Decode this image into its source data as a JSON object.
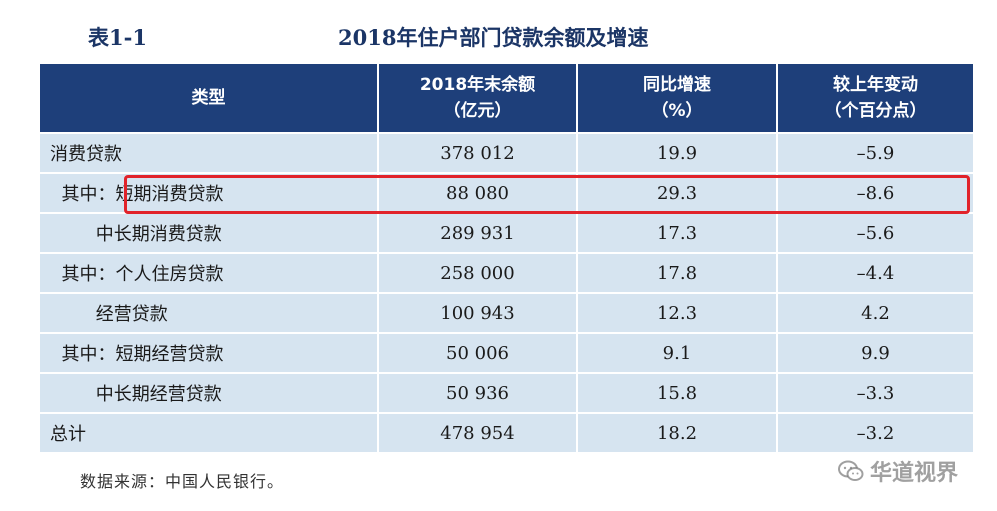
{
  "caption": {
    "label": "表1-1",
    "title": "2018年住户部门贷款余额及增速"
  },
  "table": {
    "headers": [
      {
        "line1": "类型",
        "line2": ""
      },
      {
        "line1": "2018年末余额",
        "line2": "（亿元）"
      },
      {
        "line1": "同比增速",
        "line2": "（%）"
      },
      {
        "line1": "较上年变动",
        "line2": "（个百分点）"
      }
    ],
    "rows": [
      {
        "type": "消费贷款",
        "balance": "378 012",
        "growth": "19.9",
        "change": "–5.9"
      },
      {
        "type": "  其中：短期消费贷款",
        "balance": "88 080",
        "growth": "29.3",
        "change": "–8.6"
      },
      {
        "type": "        中长期消费贷款",
        "balance": "289 931",
        "growth": "17.3",
        "change": "–5.6"
      },
      {
        "type": "  其中：个人住房贷款",
        "balance": "258 000",
        "growth": "17.8",
        "change": "–4.4"
      },
      {
        "type": "        经营贷款",
        "balance": "100 943",
        "growth": "12.3",
        "change": "4.2"
      },
      {
        "type": "  其中：短期经营贷款",
        "balance": "50 006",
        "growth": "9.1",
        "change": "9.9"
      },
      {
        "type": "        中长期经营贷款",
        "balance": "50 936",
        "growth": "15.8",
        "change": "–3.3"
      },
      {
        "type": "总计",
        "balance": "478 954",
        "growth": "18.2",
        "change": "–3.2"
      }
    ],
    "highlighted_row": 1
  },
  "source_note": "数据来源：中国人民银行。",
  "watermark": {
    "text": "华道视界",
    "icon": "wechat-icon"
  },
  "colors": {
    "header_bg": "#1e3f7a",
    "row_bg": "#d6e4f0",
    "caption": "#1b3566",
    "highlight": "#e1232a"
  }
}
